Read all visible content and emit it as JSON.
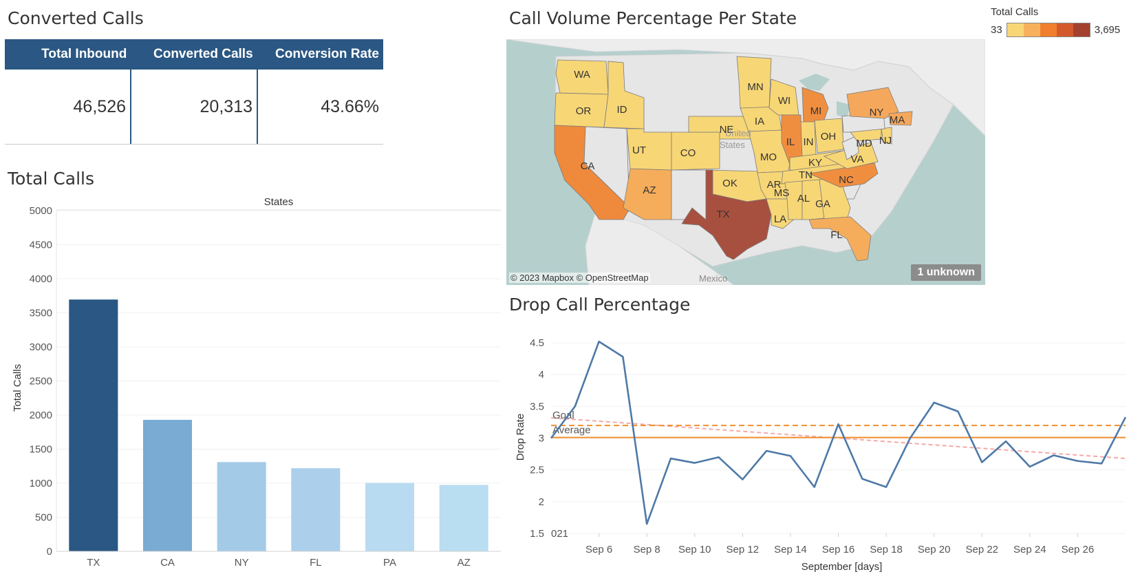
{
  "kpi": {
    "title": "Converted Calls",
    "headers": [
      "Total Inbound",
      "Converted Calls",
      "Conversion Rate"
    ],
    "values": [
      "46,526",
      "20,313",
      "43.66%"
    ]
  },
  "map": {
    "title": "Call Volume Percentage Per State",
    "legend_title": "Total Calls",
    "legend_min": "33",
    "legend_max": "3,695",
    "legend_colors": [
      "#f7d676",
      "#f7b15c",
      "#ef7f2e",
      "#d45a2c",
      "#a3412e"
    ],
    "credit": "© 2023 Mapbox © OpenStreetMap",
    "unknown_label": "1 unknown",
    "place_labels": [
      "United",
      "States",
      "Mexico"
    ],
    "states": [
      {
        "code": "WA",
        "color": "#f7d676"
      },
      {
        "code": "OR",
        "color": "#f7d676"
      },
      {
        "code": "ID",
        "color": "#f7d676"
      },
      {
        "code": "CA",
        "color": "#ef8a3c"
      },
      {
        "code": "AZ",
        "color": "#f5ad5c"
      },
      {
        "code": "UT",
        "color": "#f7d676"
      },
      {
        "code": "CO",
        "color": "#f7d676"
      },
      {
        "code": "NE",
        "color": "#f7d676"
      },
      {
        "code": "OK",
        "color": "#f7d676"
      },
      {
        "code": "TX",
        "color": "#a8503f"
      },
      {
        "code": "MN",
        "color": "#f7d676"
      },
      {
        "code": "IA",
        "color": "#f7d676"
      },
      {
        "code": "MO",
        "color": "#f7d676"
      },
      {
        "code": "AR",
        "color": "#f7d676"
      },
      {
        "code": "LA",
        "color": "#f7d676"
      },
      {
        "code": "WI",
        "color": "#f7d676"
      },
      {
        "code": "IL",
        "color": "#f08e40"
      },
      {
        "code": "MI",
        "color": "#f08e40"
      },
      {
        "code": "IN",
        "color": "#f7d676"
      },
      {
        "code": "OH",
        "color": "#f7d676"
      },
      {
        "code": "KY",
        "color": "#f7d676"
      },
      {
        "code": "TN",
        "color": "#f7d676"
      },
      {
        "code": "MS",
        "color": "#f7d676"
      },
      {
        "code": "AL",
        "color": "#f7d676"
      },
      {
        "code": "GA",
        "color": "#f7d676"
      },
      {
        "code": "FL",
        "color": "#f5ad5c"
      },
      {
        "code": "NC",
        "color": "#f08e40"
      },
      {
        "code": "VA",
        "color": "#f7d676"
      },
      {
        "code": "MD",
        "color": "#f7d676"
      },
      {
        "code": "NJ",
        "color": "#f7d676"
      },
      {
        "code": "NY",
        "color": "#f5a85c"
      },
      {
        "code": "MA",
        "color": "#f5a85c"
      }
    ]
  },
  "bar": {
    "title": "Total Calls",
    "colors": [
      "#2a5783",
      "#7aabd2",
      "#a3cbe8",
      "#acd0eb",
      "#b9dbf1",
      "#b9ddf1"
    ]
  },
  "line": {
    "title": "Drop Call Percentage",
    "goal_label": "Goal",
    "average_label": "Average",
    "clipped_label": "021",
    "line_color": "#4e79a7",
    "goal_color": "#f28e2b",
    "trend_color": "#f4a9a8"
  },
  "chart_data": [
    {
      "type": "bar",
      "title": "Total Calls",
      "header": "States",
      "ylabel": "Total Calls",
      "categories": [
        "TX",
        "CA",
        "NY",
        "FL",
        "PA",
        "AZ"
      ],
      "values": [
        3695,
        1930,
        1310,
        1220,
        1005,
        975
      ],
      "ylim": [
        0,
        5000
      ],
      "yticks": [
        0,
        500,
        1000,
        1500,
        2000,
        2500,
        3000,
        3500,
        4000,
        4500,
        5000
      ]
    },
    {
      "type": "line",
      "title": "Drop Call Percentage",
      "xlabel": "September [days]",
      "ylabel": "Drop Rate",
      "x_ticks": [
        "Sep 6",
        "Sep 8",
        "Sep 10",
        "Sep 12",
        "Sep 14",
        "Sep 16",
        "Sep 18",
        "Sep 20",
        "Sep 22",
        "Sep 24",
        "Sep 26"
      ],
      "x": [
        "2021-09-04",
        "2021-09-05",
        "2021-09-06",
        "2021-09-07",
        "2021-09-08",
        "2021-09-09",
        "2021-09-10",
        "2021-09-11",
        "2021-09-12",
        "2021-09-13",
        "2021-09-14",
        "2021-09-15",
        "2021-09-16",
        "2021-09-17",
        "2021-09-18",
        "2021-09-19",
        "2021-09-20",
        "2021-09-21",
        "2021-09-22",
        "2021-09-23",
        "2021-09-24",
        "2021-09-25",
        "2021-09-26",
        "2021-09-27",
        "2021-09-28"
      ],
      "values": [
        3.0,
        3.5,
        4.52,
        4.28,
        1.65,
        2.68,
        2.61,
        2.7,
        2.35,
        2.8,
        2.72,
        2.23,
        3.22,
        2.36,
        2.23,
        3.0,
        3.56,
        3.42,
        2.62,
        2.95,
        2.55,
        2.73,
        2.64,
        2.6,
        3.33
      ],
      "goal": 3.2,
      "average": 3.01,
      "trend": [
        3.32,
        2.68
      ],
      "ylim": [
        1.5,
        4.75
      ],
      "yticks": [
        1.5,
        2,
        2.5,
        3,
        3.5,
        4,
        4.5
      ]
    }
  ]
}
